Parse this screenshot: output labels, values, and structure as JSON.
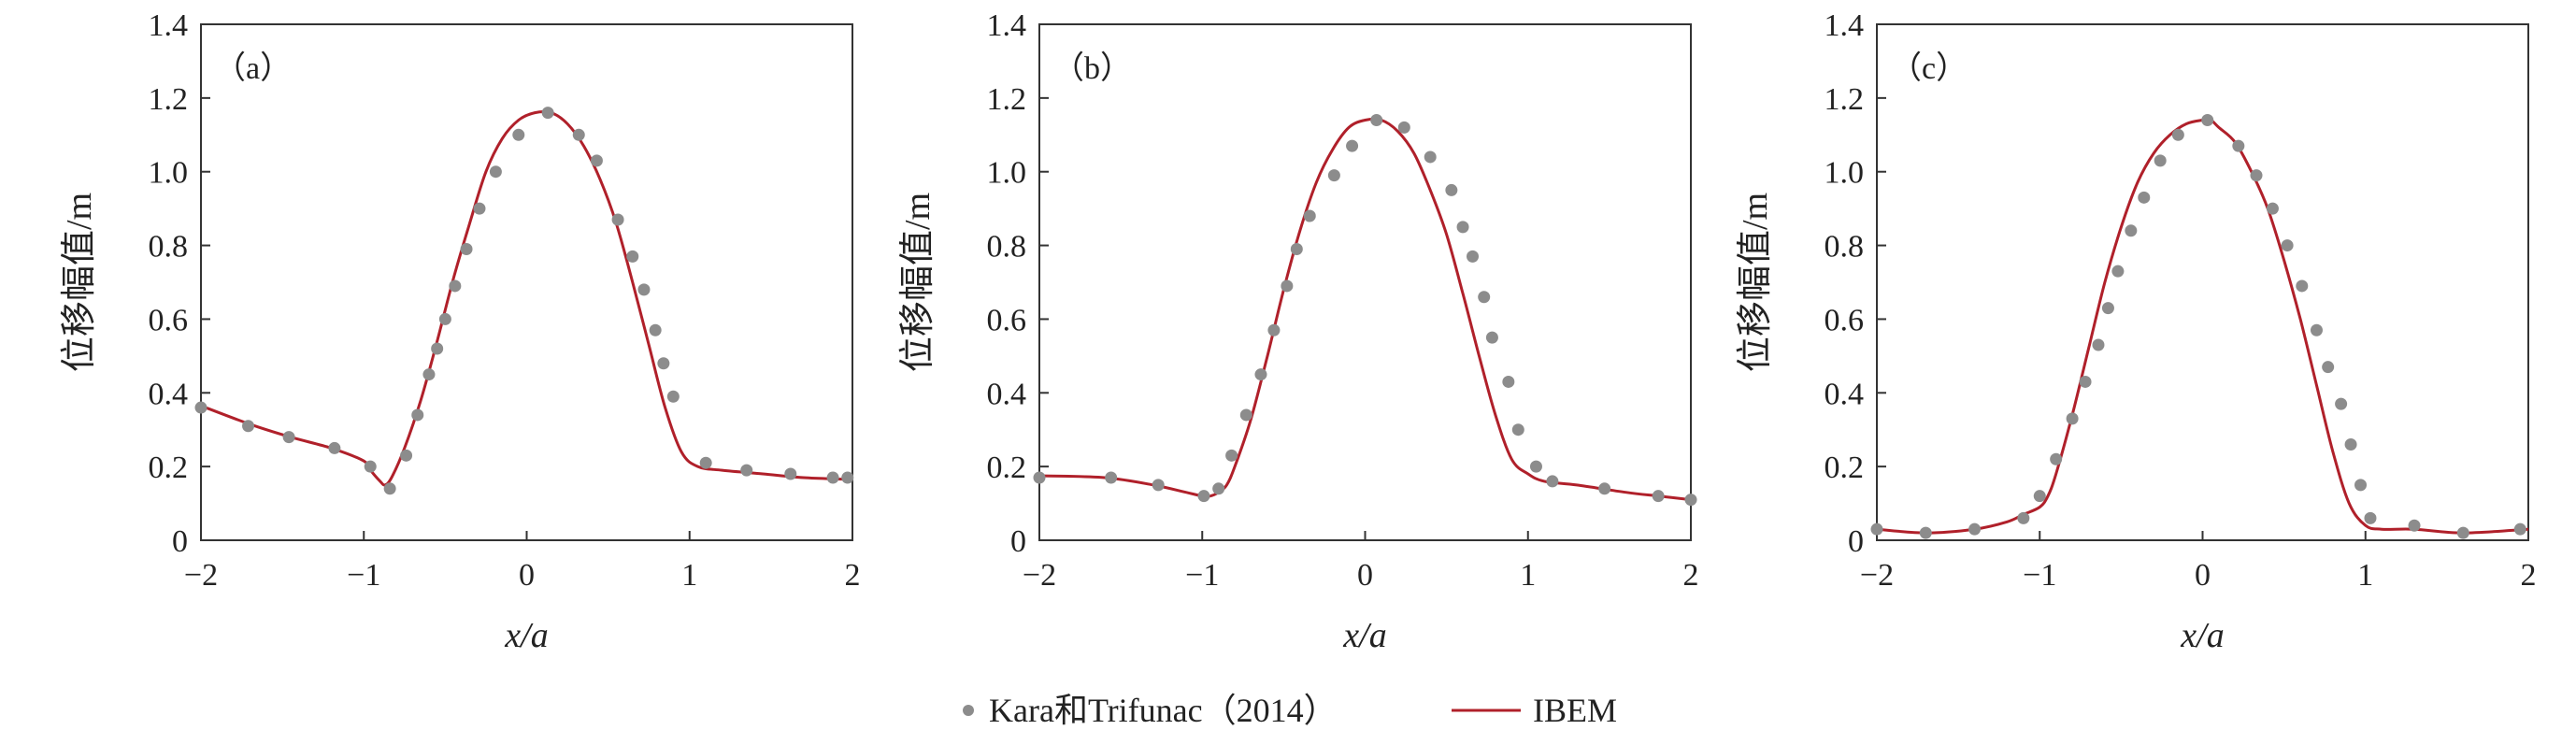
{
  "figure": {
    "series_colors": {
      "Kara和Trifunac（2014）": "#8c8c8c",
      "IBEM": "#b0202a"
    }
  },
  "legend": {
    "items": [
      {
        "label": "Kara和Trifunac（2014）",
        "kind": "marker",
        "color": "#8c8c8c"
      },
      {
        "label": "IBEM",
        "kind": "line",
        "color": "#b0202a"
      }
    ],
    "placement": "bottom-center"
  },
  "chart_data": [
    {
      "type": "line",
      "panel_label": "（a）",
      "xlabel": "x/a",
      "ylabel": "位移幅值/m",
      "xlim": [
        -2,
        2
      ],
      "ylim": [
        0,
        1.4
      ],
      "xticks": [
        "−2",
        "−1",
        "0",
        "1",
        "2"
      ],
      "yticks": [
        "0",
        "0.2",
        "0.4",
        "0.6",
        "0.8",
        "1.0",
        "1.2",
        "1.4"
      ],
      "grid": false,
      "series": [
        {
          "name": "IBEM",
          "style": "line",
          "x": [
            -2.0,
            -1.7,
            -1.45,
            -1.2,
            -1.0,
            -0.95,
            -0.9,
            -0.87,
            -0.83,
            -0.75,
            -0.65,
            -0.55,
            -0.45,
            -0.35,
            -0.25,
            -0.15,
            -0.05,
            0.05,
            0.15,
            0.25,
            0.35,
            0.45,
            0.55,
            0.65,
            0.75,
            0.85,
            0.95,
            1.05,
            1.2,
            1.45,
            1.7,
            2.0
          ],
          "y": [
            0.365,
            0.315,
            0.28,
            0.25,
            0.215,
            0.185,
            0.16,
            0.15,
            0.17,
            0.25,
            0.38,
            0.54,
            0.71,
            0.86,
            1.0,
            1.09,
            1.14,
            1.16,
            1.16,
            1.13,
            1.07,
            0.98,
            0.86,
            0.7,
            0.53,
            0.36,
            0.24,
            0.2,
            0.19,
            0.18,
            0.17,
            0.165
          ]
        },
        {
          "name": "Kara和Trifunac（2014）",
          "style": "markers",
          "x": [
            -2.0,
            -1.71,
            -1.46,
            -1.18,
            -0.96,
            -0.84,
            -0.74,
            -0.67,
            -0.6,
            -0.55,
            -0.5,
            -0.44,
            -0.37,
            -0.29,
            -0.19,
            -0.05,
            0.13,
            0.32,
            0.43,
            0.56,
            0.65,
            0.72,
            0.79,
            0.84,
            0.9,
            1.1,
            1.35,
            1.62,
            1.88,
            1.97
          ],
          "y": [
            0.36,
            0.31,
            0.28,
            0.25,
            0.2,
            0.14,
            0.23,
            0.34,
            0.45,
            0.52,
            0.6,
            0.69,
            0.79,
            0.9,
            1.0,
            1.1,
            1.16,
            1.1,
            1.03,
            0.87,
            0.77,
            0.68,
            0.57,
            0.48,
            0.39,
            0.21,
            0.19,
            0.18,
            0.17,
            0.17
          ]
        }
      ]
    },
    {
      "type": "line",
      "panel_label": "（b）",
      "xlabel": "x/a",
      "ylabel": "位移幅值/m",
      "xlim": [
        -2,
        2
      ],
      "ylim": [
        0,
        1.4
      ],
      "xticks": [
        "−2",
        "−1",
        "0",
        "1",
        "2"
      ],
      "yticks": [
        "0",
        "0.2",
        "0.4",
        "0.6",
        "0.8",
        "1.0",
        "1.2",
        "1.4"
      ],
      "grid": false,
      "series": [
        {
          "name": "IBEM",
          "style": "line",
          "x": [
            -2.0,
            -1.6,
            -1.3,
            -1.1,
            -1.0,
            -0.95,
            -0.9,
            -0.85,
            -0.8,
            -0.7,
            -0.6,
            -0.5,
            -0.4,
            -0.3,
            -0.2,
            -0.1,
            0.0,
            0.1,
            0.2,
            0.3,
            0.4,
            0.5,
            0.6,
            0.7,
            0.8,
            0.9,
            1.0,
            1.1,
            1.3,
            1.6,
            1.8,
            2.0
          ],
          "y": [
            0.175,
            0.17,
            0.15,
            0.13,
            0.12,
            0.12,
            0.13,
            0.15,
            0.2,
            0.33,
            0.5,
            0.68,
            0.84,
            0.97,
            1.06,
            1.12,
            1.14,
            1.14,
            1.11,
            1.05,
            0.95,
            0.83,
            0.67,
            0.5,
            0.34,
            0.22,
            0.18,
            0.16,
            0.15,
            0.13,
            0.12,
            0.11
          ]
        },
        {
          "name": "Kara和Trifunac（2014）",
          "style": "markers",
          "x": [
            -2.0,
            -1.56,
            -1.27,
            -0.99,
            -0.9,
            -0.82,
            -0.73,
            -0.64,
            -0.56,
            -0.48,
            -0.42,
            -0.34,
            -0.19,
            -0.08,
            0.07,
            0.24,
            0.4,
            0.53,
            0.6,
            0.66,
            0.73,
            0.78,
            0.88,
            0.94,
            1.05,
            1.15,
            1.47,
            1.8,
            2.0
          ],
          "y": [
            0.17,
            0.17,
            0.15,
            0.12,
            0.14,
            0.23,
            0.34,
            0.45,
            0.57,
            0.69,
            0.79,
            0.88,
            0.99,
            1.07,
            1.14,
            1.12,
            1.04,
            0.95,
            0.85,
            0.77,
            0.66,
            0.55,
            0.43,
            0.3,
            0.2,
            0.16,
            0.14,
            0.12,
            0.11
          ]
        }
      ]
    },
    {
      "type": "line",
      "panel_label": "（c）",
      "xlabel": "x/a",
      "ylabel": "位移幅值/m",
      "xlim": [
        -2,
        2
      ],
      "ylim": [
        0,
        1.4
      ],
      "xticks": [
        "−2",
        "−1",
        "0",
        "1",
        "2"
      ],
      "yticks": [
        "0",
        "0.2",
        "0.4",
        "0.6",
        "0.8",
        "1.0",
        "1.2",
        "1.4"
      ],
      "grid": false,
      "series": [
        {
          "name": "IBEM",
          "style": "line",
          "x": [
            -2.0,
            -1.7,
            -1.4,
            -1.2,
            -1.1,
            -1.0,
            -0.95,
            -0.9,
            -0.8,
            -0.7,
            -0.6,
            -0.5,
            -0.4,
            -0.3,
            -0.2,
            -0.1,
            0.0,
            0.05,
            0.1,
            0.2,
            0.3,
            0.4,
            0.5,
            0.6,
            0.7,
            0.8,
            0.9,
            1.0,
            1.1,
            1.3,
            1.6,
            2.0
          ],
          "y": [
            0.03,
            0.02,
            0.03,
            0.05,
            0.07,
            0.09,
            0.12,
            0.18,
            0.34,
            0.52,
            0.7,
            0.85,
            0.97,
            1.05,
            1.1,
            1.13,
            1.14,
            1.14,
            1.12,
            1.08,
            1.0,
            0.9,
            0.76,
            0.6,
            0.42,
            0.24,
            0.1,
            0.04,
            0.03,
            0.03,
            0.02,
            0.03
          ]
        },
        {
          "name": "Kara和Trifunac（2014）",
          "style": "markers",
          "x": [
            -2.0,
            -1.7,
            -1.4,
            -1.1,
            -1.0,
            -0.9,
            -0.8,
            -0.72,
            -0.64,
            -0.58,
            -0.52,
            -0.44,
            -0.36,
            -0.26,
            -0.15,
            0.03,
            0.22,
            0.33,
            0.43,
            0.52,
            0.61,
            0.7,
            0.77,
            0.85,
            0.91,
            0.97,
            1.03,
            1.3,
            1.6,
            1.95
          ],
          "y": [
            0.03,
            0.02,
            0.03,
            0.06,
            0.12,
            0.22,
            0.33,
            0.43,
            0.53,
            0.63,
            0.73,
            0.84,
            0.93,
            1.03,
            1.1,
            1.14,
            1.07,
            0.99,
            0.9,
            0.8,
            0.69,
            0.57,
            0.47,
            0.37,
            0.26,
            0.15,
            0.06,
            0.04,
            0.02,
            0.03
          ]
        }
      ]
    }
  ]
}
